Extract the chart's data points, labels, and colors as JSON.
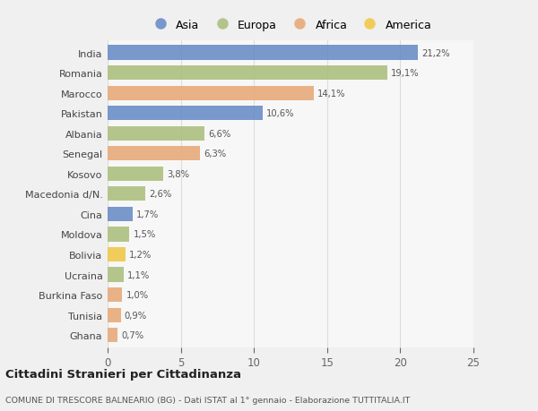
{
  "countries": [
    "India",
    "Romania",
    "Marocco",
    "Pakistan",
    "Albania",
    "Senegal",
    "Kosovo",
    "Macedonia d/N.",
    "Cina",
    "Moldova",
    "Bolivia",
    "Ucraina",
    "Burkina Faso",
    "Tunisia",
    "Ghana"
  ],
  "values": [
    21.2,
    19.1,
    14.1,
    10.6,
    6.6,
    6.3,
    3.8,
    2.6,
    1.7,
    1.5,
    1.2,
    1.1,
    1.0,
    0.9,
    0.7
  ],
  "labels": [
    "21,2%",
    "19,1%",
    "14,1%",
    "10,6%",
    "6,6%",
    "6,3%",
    "3,8%",
    "2,6%",
    "1,7%",
    "1,5%",
    "1,2%",
    "1,1%",
    "1,0%",
    "0,9%",
    "0,7%"
  ],
  "colors": [
    "#6b8ec8",
    "#adc080",
    "#e8aa7a",
    "#6b8ec8",
    "#adc080",
    "#e8aa7a",
    "#adc080",
    "#adc080",
    "#6b8ec8",
    "#adc080",
    "#f0c84a",
    "#adc080",
    "#e8aa7a",
    "#e8aa7a",
    "#e8aa7a"
  ],
  "legend_labels": [
    "Asia",
    "Europa",
    "Africa",
    "America"
  ],
  "legend_colors": [
    "#6b8ec8",
    "#adc080",
    "#e8aa7a",
    "#f0c84a"
  ],
  "title1": "Cittadini Stranieri per Cittadinanza",
  "title2": "COMUNE DI TRESCORE BALNEARIO (BG) - Dati ISTAT al 1° gennaio - Elaborazione TUTTITALIA.IT",
  "xlim": [
    0,
    25
  ],
  "xticks": [
    0,
    5,
    10,
    15,
    20,
    25
  ],
  "bg_color": "#f0f0f0",
  "bar_bg_color": "#f7f7f7",
  "grid_color": "#dddddd"
}
